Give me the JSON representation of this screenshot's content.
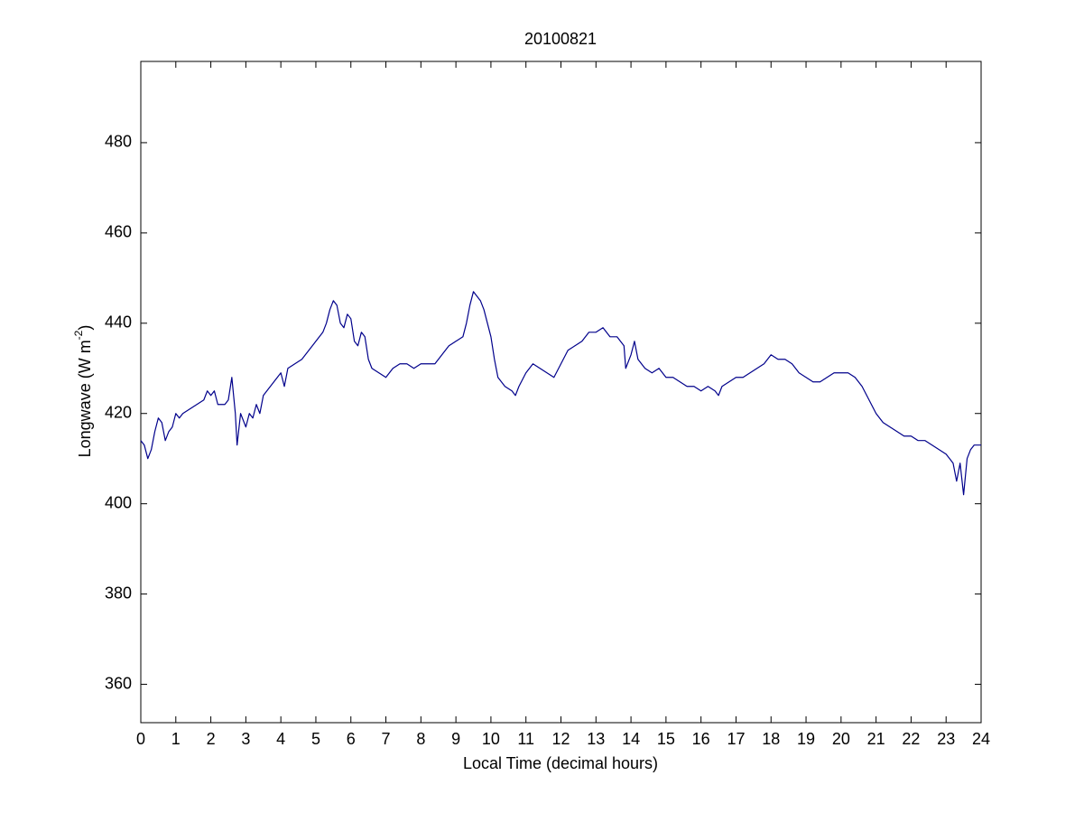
{
  "chart_data": {
    "type": "line",
    "title": "20100821",
    "xlabel": "Local Time (decimal hours)",
    "ylabel": {
      "text": "Longwave (W m",
      "superscript": "-2",
      "suffix": ")"
    },
    "xlim": [
      0,
      24
    ],
    "ylim": [
      351.5,
      498
    ],
    "xticks": [
      0,
      1,
      2,
      3,
      4,
      5,
      6,
      7,
      8,
      9,
      10,
      11,
      12,
      13,
      14,
      15,
      16,
      17,
      18,
      19,
      20,
      21,
      22,
      23,
      24
    ],
    "yticks": [
      360,
      380,
      400,
      420,
      440,
      460,
      480
    ],
    "grid": false,
    "x": [
      0,
      0.1,
      0.2,
      0.3,
      0.4,
      0.5,
      0.6,
      0.7,
      0.8,
      0.9,
      1.0,
      1.1,
      1.2,
      1.4,
      1.6,
      1.8,
      1.9,
      2.0,
      2.1,
      2.2,
      2.4,
      2.5,
      2.6,
      2.7,
      2.75,
      2.85,
      3.0,
      3.1,
      3.2,
      3.3,
      3.4,
      3.5,
      3.6,
      3.8,
      4.0,
      4.1,
      4.2,
      4.4,
      4.6,
      4.8,
      5.0,
      5.2,
      5.3,
      5.4,
      5.5,
      5.6,
      5.7,
      5.8,
      5.9,
      6.0,
      6.1,
      6.2,
      6.3,
      6.4,
      6.5,
      6.6,
      6.8,
      7.0,
      7.2,
      7.4,
      7.6,
      7.8,
      8.0,
      8.2,
      8.4,
      8.6,
      8.8,
      9.0,
      9.2,
      9.3,
      9.4,
      9.5,
      9.6,
      9.7,
      9.8,
      9.9,
      10.0,
      10.1,
      10.2,
      10.4,
      10.6,
      10.7,
      10.8,
      11.0,
      11.2,
      11.4,
      11.6,
      11.8,
      12.0,
      12.2,
      12.4,
      12.6,
      12.8,
      13.0,
      13.2,
      13.4,
      13.6,
      13.8,
      13.85,
      14.0,
      14.1,
      14.2,
      14.4,
      14.6,
      14.8,
      15.0,
      15.2,
      15.4,
      15.6,
      15.8,
      16.0,
      16.2,
      16.4,
      16.5,
      16.6,
      16.8,
      17.0,
      17.2,
      17.4,
      17.6,
      17.8,
      18.0,
      18.2,
      18.4,
      18.6,
      18.8,
      19.0,
      19.2,
      19.4,
      19.6,
      19.8,
      20.0,
      20.2,
      20.4,
      20.6,
      20.8,
      21.0,
      21.2,
      21.4,
      21.6,
      21.8,
      22.0,
      22.2,
      22.4,
      22.6,
      22.8,
      23.0,
      23.2,
      23.3,
      23.4,
      23.5,
      23.6,
      23.7,
      23.8,
      24.0
    ],
    "series": [
      {
        "color": "#00008b",
        "values": [
          414,
          413,
          410,
          412,
          416,
          419,
          418,
          414,
          416,
          417,
          420,
          419,
          420,
          421,
          422,
          423,
          425,
          424,
          425,
          422,
          422,
          423,
          428,
          420,
          413,
          420,
          417,
          420,
          419,
          422,
          420,
          424,
          425,
          427,
          429,
          426,
          430,
          431,
          432,
          434,
          436,
          438,
          440,
          443,
          445,
          444,
          440,
          439,
          442,
          441,
          436,
          435,
          438,
          437,
          432,
          430,
          429,
          428,
          430,
          431,
          431,
          430,
          431,
          431,
          431,
          433,
          435,
          436,
          437,
          440,
          444,
          447,
          446,
          445,
          443,
          440,
          437,
          432,
          428,
          426,
          425,
          424,
          426,
          429,
          431,
          430,
          429,
          428,
          431,
          434,
          435,
          436,
          438,
          438,
          439,
          437,
          437,
          435,
          430,
          433,
          436,
          432,
          430,
          429,
          430,
          428,
          428,
          427,
          426,
          426,
          425,
          426,
          425,
          424,
          426,
          427,
          428,
          428,
          429,
          430,
          431,
          433,
          432,
          432,
          431,
          429,
          428,
          427,
          427,
          428,
          429,
          429,
          429,
          428,
          426,
          423,
          420,
          418,
          417,
          416,
          415,
          415,
          414,
          414,
          413,
          412,
          411,
          409,
          405,
          409,
          402,
          410,
          412,
          413,
          413
        ]
      }
    ]
  }
}
